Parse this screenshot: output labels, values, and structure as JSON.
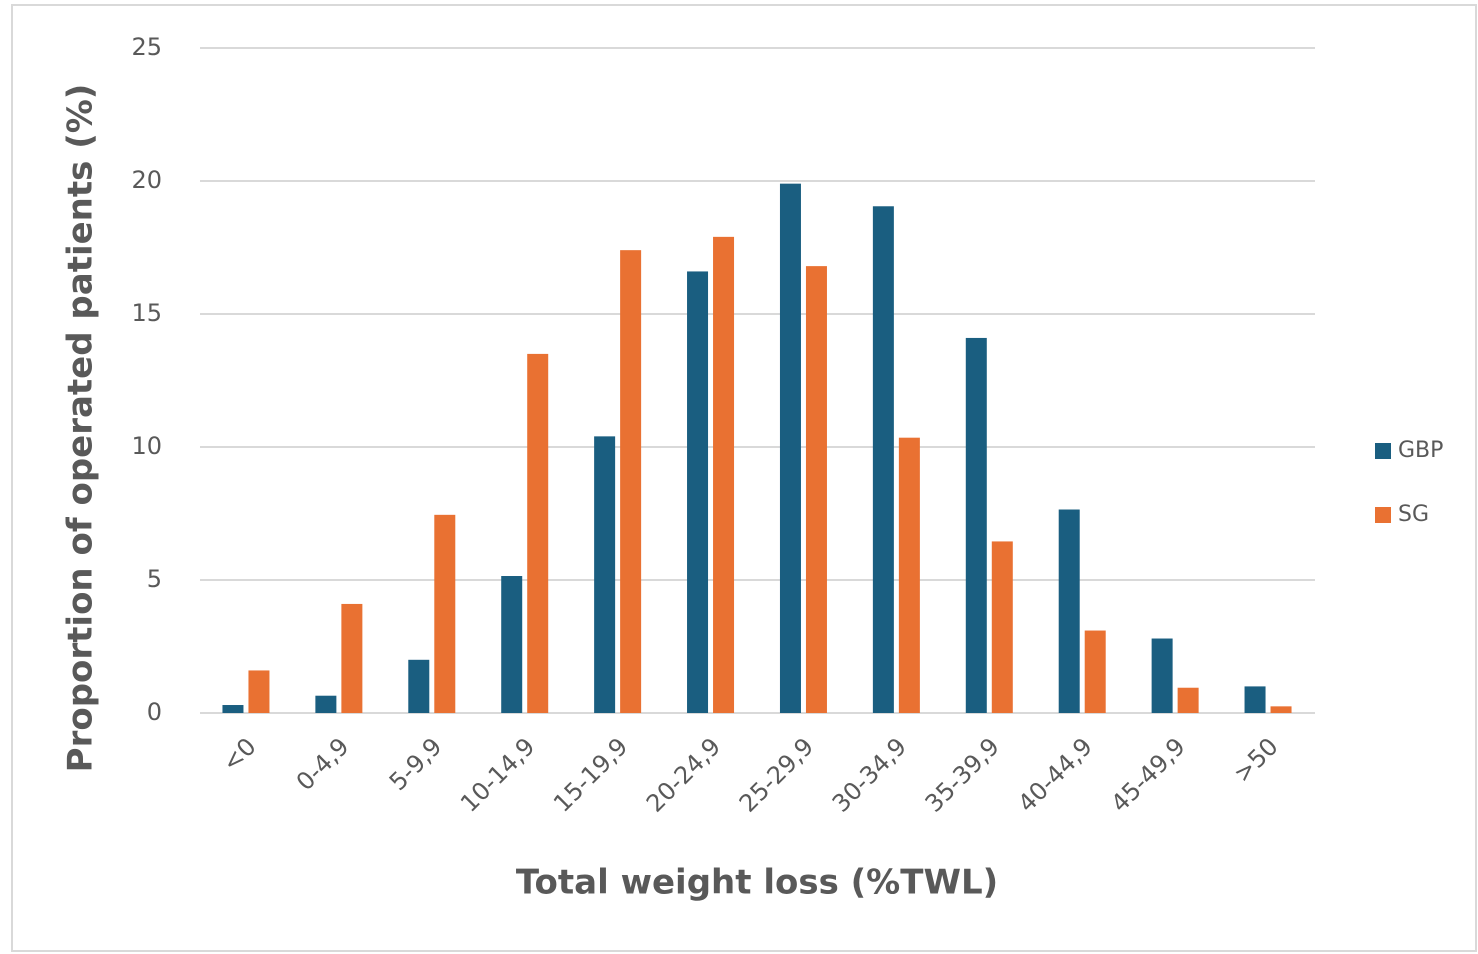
{
  "chart_data": {
    "type": "bar",
    "ylabel": "Proportion of operated patients (%)",
    "xlabel": "Total weight loss (%TWL)",
    "categories": [
      "<0",
      "0-4,9",
      "5-9,9",
      "10-14,9",
      "15-19,9",
      "20-24,9",
      "25-29,9",
      "30-34,9",
      "35-39,9",
      "40-44,9",
      "45-49,9",
      ">50"
    ],
    "series": [
      {
        "name": "GBP",
        "color": "#1a5e80",
        "values": [
          0.3,
          0.65,
          2.0,
          5.15,
          10.4,
          16.6,
          19.9,
          19.05,
          14.1,
          7.65,
          2.8,
          1.0
        ]
      },
      {
        "name": "SG",
        "color": "#e97132",
        "values": [
          1.6,
          4.1,
          7.45,
          13.5,
          17.4,
          17.9,
          16.8,
          10.35,
          6.45,
          3.1,
          0.95,
          0.25
        ]
      }
    ],
    "ylim": [
      0,
      25
    ],
    "yticks": [
      0,
      5,
      10,
      15,
      20,
      25
    ],
    "grid": true,
    "legend": "right"
  }
}
